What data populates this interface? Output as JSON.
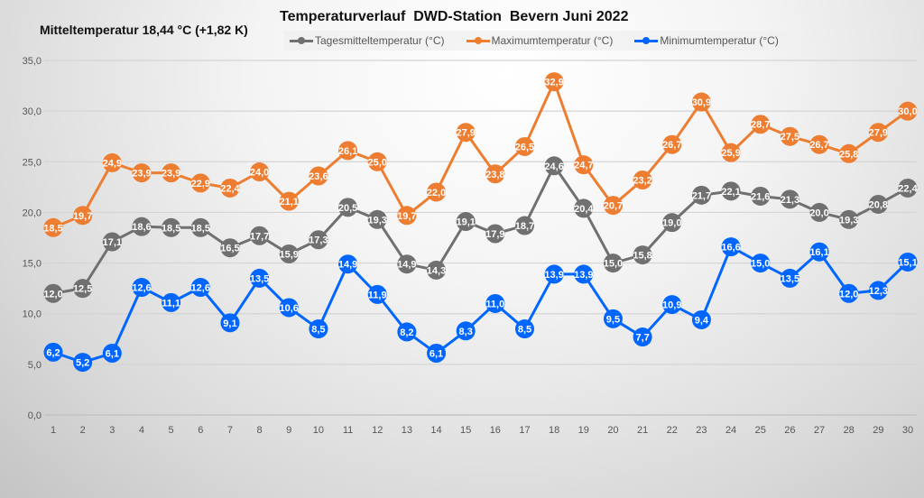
{
  "chart_data": {
    "type": "line",
    "title": "Temperaturverlauf  DWD-Station  Bevern Juni 2022",
    "subtitle": "Mitteltemperatur 18,44 °C (+1,82 K)",
    "xlabel": "",
    "ylabel": "",
    "x": [
      1,
      2,
      3,
      4,
      5,
      6,
      7,
      8,
      9,
      10,
      11,
      12,
      13,
      14,
      15,
      16,
      17,
      18,
      19,
      20,
      21,
      22,
      23,
      24,
      25,
      26,
      27,
      28,
      29,
      30
    ],
    "ylim": [
      0,
      35
    ],
    "yticks": [
      "0,0",
      "5,0",
      "10,0",
      "15,0",
      "20,0",
      "25,0",
      "30,0",
      "35,0"
    ],
    "grid": true,
    "legend": "top",
    "series": [
      {
        "name": "Tagesmitteltemperatur (°C)",
        "color": "#707070",
        "values": [
          12.0,
          12.5,
          17.1,
          18.6,
          18.5,
          18.5,
          16.5,
          17.7,
          15.9,
          17.3,
          20.5,
          19.3,
          14.9,
          14.3,
          19.1,
          17.9,
          18.7,
          24.6,
          20.4,
          15.0,
          15.8,
          19.0,
          21.7,
          22.1,
          21.6,
          21.3,
          20.0,
          19.3,
          20.8,
          22.4
        ]
      },
      {
        "name": "Maximumtemperatur (°C)",
        "color": "#ed7d31",
        "values": [
          18.5,
          19.7,
          24.9,
          23.9,
          23.9,
          22.9,
          22.4,
          24.0,
          21.1,
          23.6,
          26.1,
          25.0,
          19.7,
          22.0,
          27.9,
          23.8,
          26.5,
          32.9,
          24.7,
          20.7,
          23.2,
          26.7,
          30.9,
          25.9,
          28.7,
          27.5,
          26.7,
          25.8,
          27.9,
          30.0
        ]
      },
      {
        "name": "Minimumtemperatur (°C)",
        "color": "#0066ff",
        "values": [
          6.2,
          5.2,
          6.1,
          12.6,
          11.1,
          12.6,
          9.1,
          13.5,
          10.6,
          8.5,
          14.9,
          11.9,
          8.2,
          6.1,
          8.3,
          11.0,
          8.5,
          13.9,
          13.9,
          9.5,
          7.7,
          10.9,
          9.4,
          16.6,
          15.0,
          13.5,
          16.1,
          12.0,
          12.3,
          15.1
        ]
      }
    ]
  }
}
